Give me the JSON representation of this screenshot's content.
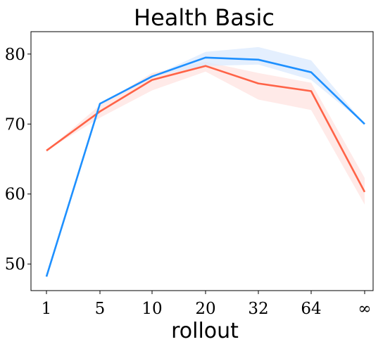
{
  "chart_data": {
    "type": "line",
    "title": "Health Basic",
    "xlabel": "rollout",
    "ylabel": "",
    "categories": [
      "1",
      "5",
      "10",
      "20",
      "32",
      "64",
      "∞"
    ],
    "ylim": [
      46.2,
      83.2
    ],
    "yticks": [
      50,
      60,
      70,
      80
    ],
    "grid": false,
    "legend": "none",
    "series": [
      {
        "color": "#ff6347",
        "band_color": "#ffe3e0",
        "values": [
          66.2,
          71.8,
          76.3,
          78.3,
          75.8,
          74.7,
          60.3
        ],
        "lower": [
          66.2,
          70.9,
          74.8,
          77.5,
          73.5,
          72.0,
          58.5
        ],
        "upper": [
          66.2,
          72.7,
          77.3,
          78.9,
          77.3,
          75.9,
          62.3
        ]
      },
      {
        "color": "#1e90ff",
        "band_color": "#dbeafe",
        "values": [
          48.2,
          72.9,
          76.8,
          79.5,
          79.2,
          77.4,
          70.0
        ],
        "lower": [
          48.2,
          72.9,
          76.8,
          78.3,
          78.5,
          76.3,
          70.0
        ],
        "upper": [
          48.2,
          72.9,
          76.8,
          80.3,
          81.0,
          79.1,
          70.0
        ]
      }
    ]
  }
}
